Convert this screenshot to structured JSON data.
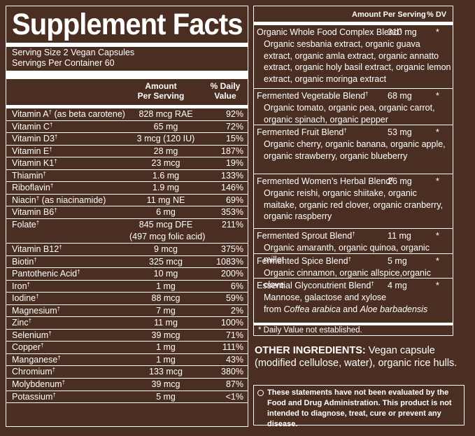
{
  "title": "Supplement Facts",
  "serving_size": "Serving Size 2 Vegan Capsules",
  "servings_per_container": "Servings Per Container 60",
  "headers": {
    "amount_line1": "Amount",
    "amount_line2": "Per Serving",
    "dv_line1": "% Daily",
    "dv_line2": "Value"
  },
  "nutrients": [
    {
      "name": "Vitamin A",
      "sup": "†",
      "extra": " (as beta carotene)",
      "amount": "828 mcg RAE",
      "dv": "92%"
    },
    {
      "name": "Vitamin C",
      "sup": "†",
      "extra": "",
      "amount": "65 mg",
      "dv": "72%"
    },
    {
      "name": "Vitamin D3",
      "sup": "†",
      "extra": "",
      "amount": "3 mcg (120 IU)",
      "dv": "15%"
    },
    {
      "name": "Vitamin E",
      "sup": "†",
      "extra": "",
      "amount": "28 mg",
      "dv": "187%"
    },
    {
      "name": "Vitamin K1",
      "sup": "†",
      "extra": "",
      "amount": "23 mcg",
      "dv": "19%"
    },
    {
      "name": "Thiamin",
      "sup": "†",
      "extra": "",
      "amount": "1.6 mg",
      "dv": "133%"
    },
    {
      "name": "Riboflavin",
      "sup": "†",
      "extra": "",
      "amount": "1.9 mg",
      "dv": "146%"
    },
    {
      "name": "Niacin",
      "sup": "†",
      "extra": " (as niacinamide)",
      "amount": "11 mg NE",
      "dv": "69%"
    },
    {
      "name": "Vitamin B6",
      "sup": "†",
      "extra": "",
      "amount": "6 mg",
      "dv": "353%"
    },
    {
      "name": "Folate",
      "sup": "†",
      "extra": "",
      "amount": "845 mcg DFE",
      "amount2": "(497 mcg folic acid)",
      "dv": "211%"
    },
    {
      "name": "Vitamin B12",
      "sup": "†",
      "extra": "",
      "amount": "9 mcg",
      "dv": "375%"
    },
    {
      "name": "Biotin",
      "sup": "†",
      "extra": "",
      "amount": "325 mcg",
      "dv": "1083%"
    },
    {
      "name": "Pantothenic Acid",
      "sup": "†",
      "extra": "",
      "amount": "10 mg",
      "dv": "200%"
    },
    {
      "name": "Iron",
      "sup": "†",
      "extra": "",
      "amount": "1 mg",
      "dv": "6%"
    },
    {
      "name": "Iodine",
      "sup": "†",
      "extra": "",
      "amount": "88 mcg",
      "dv": "59%"
    },
    {
      "name": "Magnesium",
      "sup": "†",
      "extra": "",
      "amount": "7 mg",
      "dv": "2%"
    },
    {
      "name": "Zinc",
      "sup": "†",
      "extra": "",
      "amount": "11 mg",
      "dv": "100%"
    },
    {
      "name": "Selenium",
      "sup": "†",
      "extra": "",
      "amount": "39 mcg",
      "dv": "71%"
    },
    {
      "name": "Copper",
      "sup": "†",
      "extra": "",
      "amount": "1 mg",
      "dv": "111%"
    },
    {
      "name": "Manganese",
      "sup": "†",
      "extra": "",
      "amount": "1 mg",
      "dv": "43%"
    },
    {
      "name": "Chromium",
      "sup": "†",
      "extra": "",
      "amount": "133 mcg",
      "dv": "380%"
    },
    {
      "name": "Molybdenum",
      "sup": "†",
      "extra": "",
      "amount": "39 mcg",
      "dv": "87%"
    },
    {
      "name": "Potassium",
      "sup": "†",
      "extra": "",
      "amount": "5 mg",
      "dv": "<1%"
    }
  ],
  "right_headers": {
    "amount": "Amount Per Serving",
    "dv": "% DV"
  },
  "blends": [
    {
      "name": "Organic Whole Food Complex Blend",
      "sup": "†",
      "amount": "310 mg",
      "star": "*",
      "desc": "Organic sesbania extract, organic guava extract, organic amla extract, organic annatto extract, organic holy basil extract, organic lemon extract, organic moringa extract"
    },
    {
      "name": "Fermented Vegetable Blend",
      "sup": "†",
      "amount": "68 mg",
      "star": "*",
      "desc": "Organic tomato, organic pea, organic carrot, organic spinach, organic pepper"
    },
    {
      "name": "Fermented Fruit Blend",
      "sup": "†",
      "amount": "53 mg",
      "star": "*",
      "desc": "Organic cherry, organic banana, organic apple, organic strawberry, organic blueberry"
    },
    {
      "name": "Fermented Women’s Herbal Blend",
      "sup": "†",
      "amount": "26 mg",
      "star": "*",
      "desc": "Organic reishi, organic shiitake, organic maitake, organic red clover, organic cranberry, organic raspberry"
    },
    {
      "name": "Fermented Sprout Blend",
      "sup": "†",
      "amount": "11 mg",
      "star": "*",
      "desc": "Organic amaranth, organic quinoa, organic millet"
    },
    {
      "name": "Fermented Spice Blend",
      "sup": "†",
      "amount": "5 mg",
      "star": "*",
      "desc": "Organic cinnamon, organic allspice,organic clove"
    },
    {
      "name": "Essential Glyconutrient Blend",
      "sup": "†",
      "amount": "4 mg",
      "star": "*",
      "desc_a": "Mannose, galactose and xylose",
      "desc_b": "from ",
      "desc_i1": "Coffea arabica",
      "desc_c": " and ",
      "desc_i2": "Aloe barbadensis"
    }
  ],
  "dv_note": "* Daily Value not established.",
  "other_label": "OTHER INGREDIENTS:",
  "other_text": " Vegan capsule (modified cellulose, water), organic rice hulls.",
  "disclaimer": "These statements have not been evaluated by the Food and Drug Administration. This product is not intended to diagnose, treat, cure or prevent any disease.",
  "colors": {
    "background": "#4a2e22",
    "text": "#ffffff"
  }
}
